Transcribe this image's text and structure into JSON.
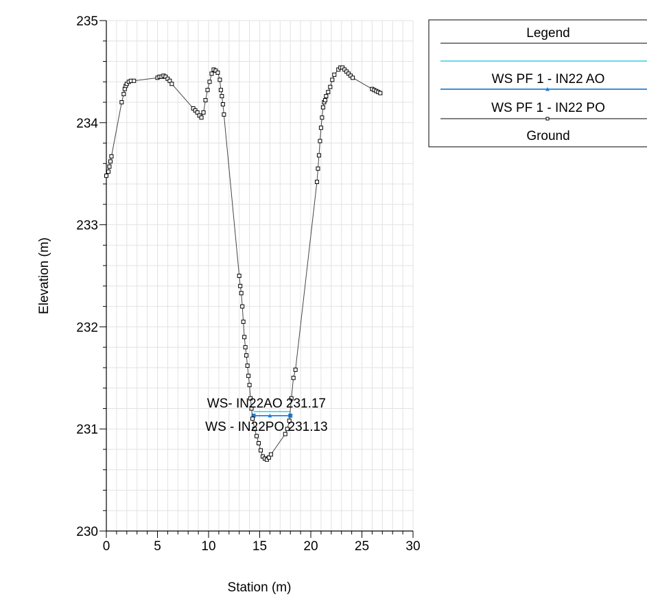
{
  "chart_data": {
    "type": "line",
    "xlabel": "Station (m)",
    "ylabel": "Elevation (m)",
    "xlim": [
      0,
      30
    ],
    "ylim": [
      230,
      235
    ],
    "x_ticks": [
      "0",
      "5",
      "10",
      "15",
      "20",
      "25",
      "30"
    ],
    "y_ticks": [
      "230",
      "231",
      "232",
      "233",
      "234",
      "235"
    ],
    "grid": true,
    "legend_position": "top-right",
    "legend": {
      "title": "Legend",
      "entries": [
        "WS PF 1 - IN22 AO",
        "WS PF 1 - IN22 PO",
        "Ground"
      ]
    },
    "series": [
      {
        "name": "WS PF 1 - IN22 AO",
        "color": "#33ccee",
        "x": [
          14.4,
          18.0
        ],
        "y": [
          231.17,
          231.17
        ]
      },
      {
        "name": "WS PF 1 - IN22 PO",
        "color": "#1f7fd8",
        "x": [
          14.4,
          16.0,
          18.0
        ],
        "y": [
          231.13,
          231.13,
          231.13
        ]
      },
      {
        "name": "Ground",
        "color": "#000000",
        "x": [
          0,
          0.2,
          0.3,
          0.4,
          0.5,
          1.5,
          1.7,
          1.8,
          1.9,
          2.0,
          2.2,
          2.4,
          2.7,
          5.0,
          5.2,
          5.4,
          5.6,
          5.8,
          6.0,
          6.2,
          6.4,
          8.5,
          8.7,
          8.9,
          9.1,
          9.3,
          9.5,
          9.7,
          9.9,
          10.1,
          10.3,
          10.5,
          10.7,
          10.9,
          11.1,
          11.2,
          11.3,
          11.4,
          11.5,
          13.0,
          13.1,
          13.2,
          13.3,
          13.4,
          13.5,
          13.6,
          13.7,
          13.8,
          13.9,
          14.0,
          14.1,
          14.2,
          14.3,
          14.5,
          14.7,
          14.9,
          15.1,
          15.3,
          15.5,
          15.7,
          15.9,
          16.1,
          17.5,
          17.7,
          17.9,
          18.1,
          18.3,
          18.5,
          20.6,
          20.7,
          20.8,
          20.9,
          21.0,
          21.1,
          21.2,
          21.3,
          21.4,
          21.5,
          21.7,
          21.9,
          22.1,
          22.3,
          22.7,
          22.9,
          23.1,
          23.3,
          23.5,
          23.7,
          23.9,
          24.1,
          26.0,
          26.2,
          26.4,
          26.6,
          26.8
        ],
        "y": [
          233.48,
          233.52,
          233.57,
          233.62,
          233.67,
          234.2,
          234.28,
          234.33,
          234.36,
          234.38,
          234.4,
          234.41,
          234.41,
          234.44,
          234.45,
          234.45,
          234.46,
          234.45,
          234.43,
          234.41,
          234.38,
          234.14,
          234.12,
          234.1,
          234.07,
          234.05,
          234.1,
          234.22,
          234.32,
          234.4,
          234.48,
          234.52,
          234.51,
          234.49,
          234.42,
          234.32,
          234.26,
          234.18,
          234.08,
          232.5,
          232.4,
          232.33,
          232.2,
          232.05,
          231.9,
          231.8,
          231.72,
          231.62,
          231.52,
          231.43,
          231.3,
          231.2,
          231.1,
          231.0,
          230.93,
          230.86,
          230.79,
          230.73,
          230.71,
          230.7,
          230.72,
          230.75,
          230.95,
          231.0,
          231.08,
          231.3,
          231.5,
          231.58,
          233.42,
          233.55,
          233.68,
          233.82,
          233.95,
          234.05,
          234.15,
          234.2,
          234.22,
          234.26,
          234.3,
          234.35,
          234.42,
          234.47,
          234.52,
          234.54,
          234.54,
          234.52,
          234.5,
          234.48,
          234.46,
          234.44,
          234.33,
          234.32,
          234.31,
          234.3,
          234.29
        ]
      }
    ],
    "annotations": [
      {
        "text": "WS- IN22AO 231.17",
        "x": 16.0,
        "y": 231.17
      },
      {
        "text": "WS - IN22PO 231.13",
        "x": 16.0,
        "y": 231.13
      }
    ]
  }
}
